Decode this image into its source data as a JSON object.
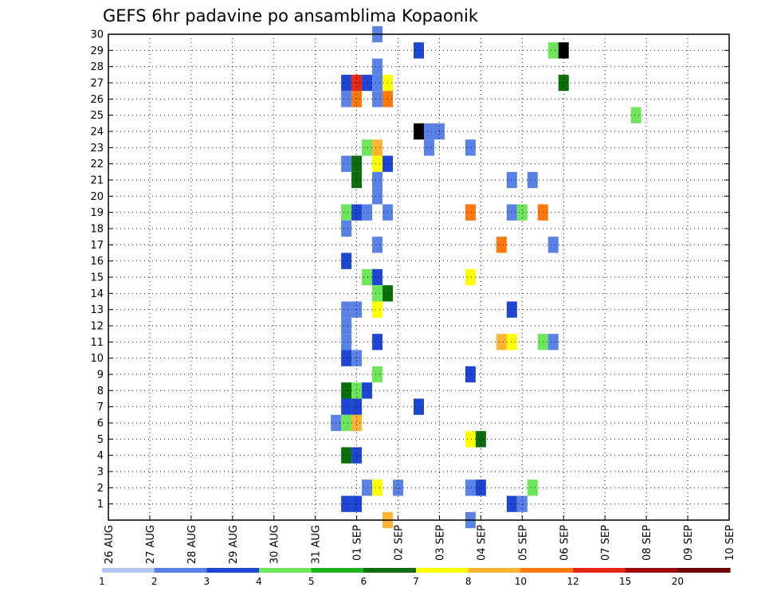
{
  "chart_data": {
    "type": "heatmap",
    "title": "GEFS 6hr padavine po ansamblima Kopaonik",
    "xlabel": "",
    "ylabel": "",
    "x_tick_labels": [
      "26 AUG",
      "27 AUG",
      "28 AUG",
      "29 AUG",
      "30 AUG",
      "31 AUG",
      "01 SEP",
      "02 SEP",
      "03 SEP",
      "04 SEP",
      "05 SEP",
      "06 SEP",
      "07 SEP",
      "08 SEP",
      "09 SEP",
      "10 SEP"
    ],
    "y_tick_labels": [
      "1",
      "2",
      "3",
      "4",
      "5",
      "6",
      "7",
      "8",
      "9",
      "10",
      "11",
      "12",
      "13",
      "14",
      "15",
      "16",
      "17",
      "18",
      "19",
      "20",
      "21",
      "22",
      "23",
      "24",
      "25",
      "26",
      "27",
      "28",
      "29",
      "30"
    ],
    "ylim": [
      0,
      30
    ],
    "grid": true,
    "colorbar": {
      "levels": [
        1,
        2,
        3,
        4,
        5,
        6,
        7,
        8,
        10,
        12,
        15,
        20
      ],
      "labels": [
        "1",
        "2",
        "3",
        "4",
        "5",
        "6",
        "7",
        "8",
        "10",
        "12",
        "15",
        "20"
      ],
      "colors": [
        "#b4c8f5",
        "#5a82e6",
        "#1e46d2",
        "#6ee65a",
        "#1eb41e",
        "#0a6e0a",
        "#ffff00",
        "#ffb432",
        "#ff780a",
        "#e62814",
        "#a00a0a",
        "#6e0000"
      ]
    },
    "cells": [
      [
        30,
        6.5,
        1
      ],
      [
        30,
        17.5,
        5
      ],
      [
        30,
        17.75,
        1
      ],
      [
        29,
        7.5,
        2
      ],
      [
        29,
        10.75,
        3
      ],
      [
        29,
        11,
        12
      ],
      [
        28,
        6.5,
        1
      ],
      [
        28,
        17.25,
        1
      ],
      [
        27,
        5.75,
        2
      ],
      [
        27,
        6,
        9
      ],
      [
        27,
        6.25,
        2
      ],
      [
        27,
        6.5,
        1
      ],
      [
        27,
        6.75,
        6
      ],
      [
        27,
        11,
        5
      ],
      [
        27,
        18.5,
        1
      ],
      [
        27,
        18.75,
        1
      ],
      [
        27,
        19.25,
        8
      ],
      [
        27,
        19.5,
        1
      ],
      [
        27,
        19.75,
        7
      ],
      [
        27,
        20,
        1
      ],
      [
        27,
        20.25,
        7
      ],
      [
        26,
        5.75,
        1
      ],
      [
        26,
        6,
        8
      ],
      [
        26,
        6.5,
        1
      ],
      [
        26,
        6.75,
        8
      ],
      [
        26,
        21.25,
        3
      ],
      [
        26,
        21.5,
        1
      ],
      [
        26,
        22,
        1
      ],
      [
        26,
        22.25,
        1
      ],
      [
        25,
        12.75,
        3
      ],
      [
        24,
        7.5,
        12
      ],
      [
        24,
        7.75,
        1
      ],
      [
        24,
        8,
        1
      ],
      [
        23,
        6.25,
        3
      ],
      [
        23,
        6.5,
        7
      ],
      [
        23,
        7.75,
        1
      ],
      [
        23,
        8.75,
        1
      ],
      [
        23,
        20.75,
        1
      ],
      [
        23,
        22,
        1
      ],
      [
        22,
        5.75,
        1
      ],
      [
        22,
        6,
        5
      ],
      [
        22,
        6.5,
        6
      ],
      [
        22,
        6.75,
        2
      ],
      [
        22,
        21,
        1
      ],
      [
        22,
        21.25,
        2
      ],
      [
        22,
        21.5,
        1
      ],
      [
        21,
        6,
        5
      ],
      [
        21,
        6.5,
        1
      ],
      [
        21,
        9.75,
        1
      ],
      [
        21,
        10.25,
        1
      ],
      [
        21,
        22,
        1
      ],
      [
        21,
        22.25,
        1
      ],
      [
        21,
        22.75,
        2
      ],
      [
        21,
        23,
        3
      ],
      [
        20,
        6.5,
        1
      ],
      [
        20,
        23.25,
        1
      ],
      [
        19,
        5.75,
        3
      ],
      [
        19,
        6,
        2
      ],
      [
        19,
        6.25,
        1
      ],
      [
        19,
        6.75,
        1
      ],
      [
        19,
        8.75,
        8
      ],
      [
        19,
        9.75,
        1
      ],
      [
        19,
        10,
        3
      ],
      [
        19,
        10.5,
        8
      ],
      [
        19,
        21.5,
        1
      ],
      [
        18,
        5.75,
        1
      ],
      [
        18,
        21,
        8
      ],
      [
        18,
        21.25,
        8
      ],
      [
        18,
        21.5,
        1
      ],
      [
        18,
        21.75,
        1
      ],
      [
        18,
        23.5,
        6
      ],
      [
        17,
        6.5,
        1
      ],
      [
        17,
        9.5,
        8
      ],
      [
        17,
        10.75,
        1
      ],
      [
        16,
        5.75,
        2
      ],
      [
        16,
        17.75,
        1
      ],
      [
        15,
        6.25,
        3
      ],
      [
        15,
        6.5,
        2
      ],
      [
        15,
        8.75,
        6
      ],
      [
        15,
        20,
        1
      ],
      [
        15,
        20.75,
        3
      ],
      [
        15,
        21,
        8
      ],
      [
        15,
        21.25,
        12
      ],
      [
        15,
        21.5,
        1
      ],
      [
        14,
        6.5,
        3
      ],
      [
        14,
        6.75,
        5
      ],
      [
        13,
        5.75,
        1
      ],
      [
        13,
        6,
        1
      ],
      [
        13,
        6.5,
        6
      ],
      [
        13,
        9.75,
        2
      ],
      [
        13,
        21.75,
        1
      ],
      [
        12,
        5.75,
        1
      ],
      [
        12,
        22,
        1
      ],
      [
        12,
        22.5,
        1
      ],
      [
        12,
        22.75,
        1
      ],
      [
        12,
        23,
        2
      ],
      [
        11,
        5.75,
        1
      ],
      [
        11,
        6.5,
        2
      ],
      [
        11,
        9.5,
        7
      ],
      [
        11,
        9.75,
        6
      ],
      [
        11,
        10.5,
        3
      ],
      [
        11,
        10.75,
        1
      ],
      [
        11,
        18.25,
        1
      ],
      [
        11,
        18.75,
        2
      ],
      [
        11,
        19,
        1
      ],
      [
        11,
        19.25,
        1
      ],
      [
        11,
        20.5,
        2
      ],
      [
        11,
        20.75,
        1
      ],
      [
        11,
        24,
        1
      ],
      [
        10,
        5.75,
        2
      ],
      [
        10,
        6,
        1
      ],
      [
        10,
        21.75,
        1
      ],
      [
        10,
        22,
        1
      ],
      [
        9,
        6.5,
        3
      ],
      [
        9,
        8.75,
        2
      ],
      [
        9,
        17.75,
        1
      ],
      [
        8,
        5.75,
        5
      ],
      [
        8,
        6,
        3
      ],
      [
        8,
        6.25,
        2
      ],
      [
        8,
        20.5,
        3
      ],
      [
        8,
        20.75,
        2
      ],
      [
        7,
        5.75,
        2
      ],
      [
        7,
        6,
        2
      ],
      [
        7,
        7.5,
        2
      ],
      [
        7,
        21.25,
        8
      ],
      [
        7,
        23,
        1
      ],
      [
        6,
        5.5,
        1
      ],
      [
        6,
        5.75,
        3
      ],
      [
        6,
        6,
        7
      ],
      [
        6,
        21,
        1
      ],
      [
        6,
        21.25,
        10
      ],
      [
        6,
        21.5,
        1
      ],
      [
        6,
        21.75,
        2
      ],
      [
        6,
        22,
        2
      ],
      [
        6,
        22.25,
        3
      ],
      [
        6,
        22.5,
        1
      ],
      [
        5,
        8.75,
        6
      ],
      [
        5,
        9,
        5
      ],
      [
        5,
        18.75,
        2
      ],
      [
        5,
        19.5,
        6
      ],
      [
        5,
        19.75,
        1
      ],
      [
        5,
        21,
        2
      ],
      [
        5,
        21.25,
        5
      ],
      [
        5,
        21.5,
        3
      ],
      [
        5,
        21.75,
        2
      ],
      [
        5,
        23.25,
        1
      ],
      [
        4,
        5.75,
        5
      ],
      [
        4,
        6,
        2
      ],
      [
        2,
        6.25,
        1
      ],
      [
        2,
        6.5,
        6
      ],
      [
        2,
        7,
        1
      ],
      [
        2,
        8.75,
        1
      ],
      [
        2,
        9,
        2
      ],
      [
        2,
        10.25,
        3
      ],
      [
        2,
        17.75,
        2
      ],
      [
        2,
        20,
        1
      ],
      [
        1,
        5.75,
        2
      ],
      [
        1,
        6,
        2
      ],
      [
        1,
        9.75,
        2
      ],
      [
        1,
        10,
        1
      ],
      [
        0,
        6.75,
        7
      ],
      [
        0,
        8.75,
        1
      ]
    ]
  }
}
